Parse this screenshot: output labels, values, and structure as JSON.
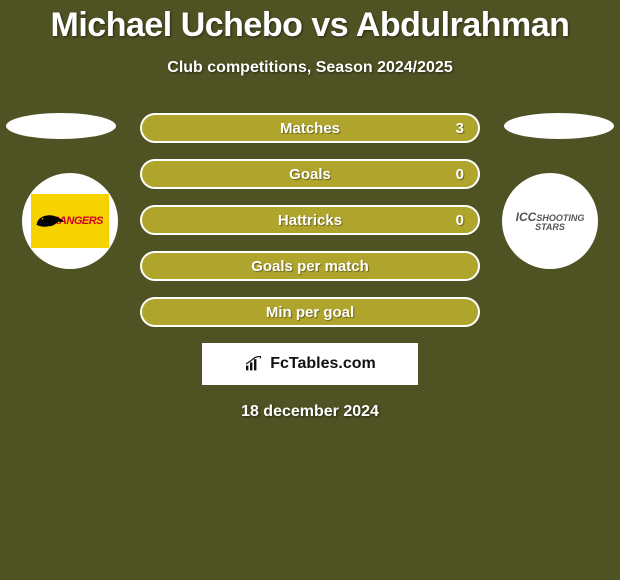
{
  "colors": {
    "background": "#4f5223",
    "bar_fill": "#b0a52c",
    "bar_border": "#ffffff",
    "text": "#ffffff",
    "logo_bg_left": "#f5d200",
    "logo_text_left": "#d4002a"
  },
  "title": "Michael Uchebo vs Abdulrahman",
  "subtitle": "Club competitions, Season 2024/2025",
  "date": "18 december 2024",
  "team_left": {
    "name": "RANGERS"
  },
  "team_right": {
    "prefix": "ICC",
    "suffix": "SHOOTING STARS"
  },
  "stats": [
    {
      "label": "Matches",
      "value": "3"
    },
    {
      "label": "Goals",
      "value": "0"
    },
    {
      "label": "Hattricks",
      "value": "0"
    },
    {
      "label": "Goals per match",
      "value": ""
    },
    {
      "label": "Min per goal",
      "value": ""
    }
  ],
  "watermark": "FcTables.com"
}
